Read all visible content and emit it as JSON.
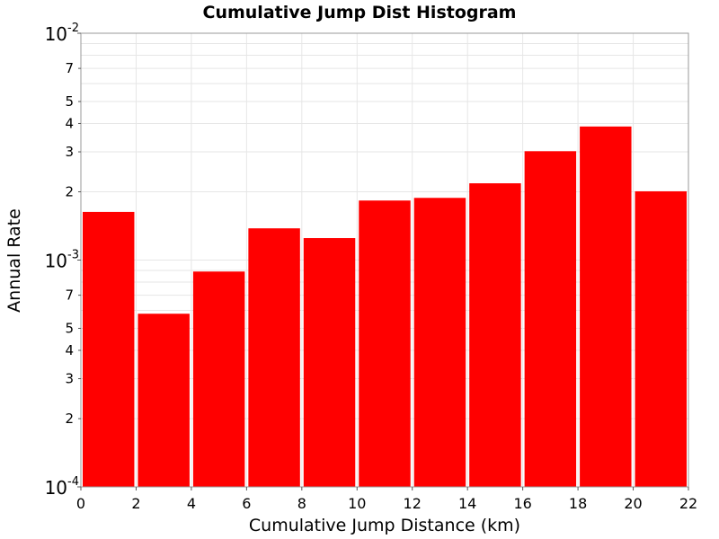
{
  "chart_data": {
    "type": "bar",
    "title": "Cumulative Jump Dist Histogram",
    "xlabel": "Cumulative Jump Distance (km)",
    "ylabel": "Annual Rate",
    "y_scale": "log",
    "xlim": [
      0,
      22
    ],
    "ylim": [
      0.0001,
      0.01
    ],
    "x_ticks": [
      "0",
      "2",
      "4",
      "6",
      "8",
      "10",
      "12",
      "14",
      "16",
      "18",
      "20",
      "22"
    ],
    "y_major_ticks": [
      {
        "value": 0.0001,
        "base": "10",
        "exp": "-4"
      },
      {
        "value": 0.001,
        "base": "10",
        "exp": "-3"
      },
      {
        "value": 0.01,
        "base": "10",
        "exp": "-2"
      }
    ],
    "y_minor_tick_labels": [
      "2",
      "3",
      "4",
      "5",
      "7"
    ],
    "bar_color": "#ff0000",
    "grid": true,
    "bars": [
      {
        "x_start": 0,
        "x_end": 2,
        "value": 0.00163
      },
      {
        "x_start": 2,
        "x_end": 4,
        "value": 0.00058
      },
      {
        "x_start": 4,
        "x_end": 6,
        "value": 0.00089
      },
      {
        "x_start": 6,
        "x_end": 8,
        "value": 0.00138
      },
      {
        "x_start": 8,
        "x_end": 10,
        "value": 0.00125
      },
      {
        "x_start": 10,
        "x_end": 12,
        "value": 0.00183
      },
      {
        "x_start": 12,
        "x_end": 14,
        "value": 0.00188
      },
      {
        "x_start": 14,
        "x_end": 16,
        "value": 0.00218
      },
      {
        "x_start": 16,
        "x_end": 18,
        "value": 0.00302
      },
      {
        "x_start": 18,
        "x_end": 20,
        "value": 0.00388
      },
      {
        "x_start": 20,
        "x_end": 22,
        "value": 0.00201
      }
    ]
  }
}
